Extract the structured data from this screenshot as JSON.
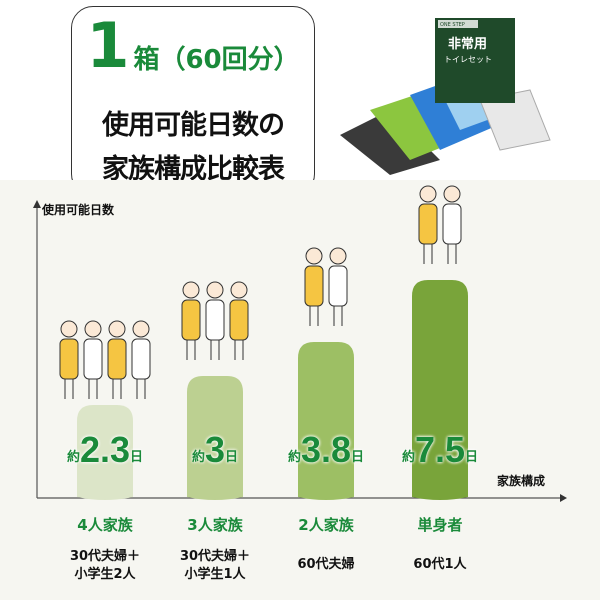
{
  "header": {
    "title_number": "1",
    "title_suffix": "箱（60回分）",
    "title_line2": "使用可能日数の",
    "title_line3": "家族構成比較表"
  },
  "product": {
    "brand": "ONE STEP",
    "name_line1": "非常用",
    "name_line2": "トイレセット"
  },
  "chart_data": {
    "type": "bar",
    "ylabel": "使用可能日数",
    "xlabel": "家族構成",
    "categories": [
      "4人家族",
      "3人家族",
      "2人家族",
      "単身者"
    ],
    "descriptions": [
      "30代夫婦＋\n小学生2人",
      "30代夫婦＋\n小学生1人",
      "60代夫婦",
      "60代1人"
    ],
    "values": [
      2.3,
      3,
      3.8,
      7.5
    ],
    "value_labels": [
      "2.3",
      "3",
      "3.8",
      "7.5"
    ],
    "value_prefix": "約",
    "value_suffix": "日",
    "colors": [
      "#dce5c8",
      "#bcd091",
      "#9dbf64",
      "#79a43a"
    ],
    "grid": false
  },
  "colors": {
    "accent": "#1a8a3a",
    "background": "#f6f6f1"
  }
}
